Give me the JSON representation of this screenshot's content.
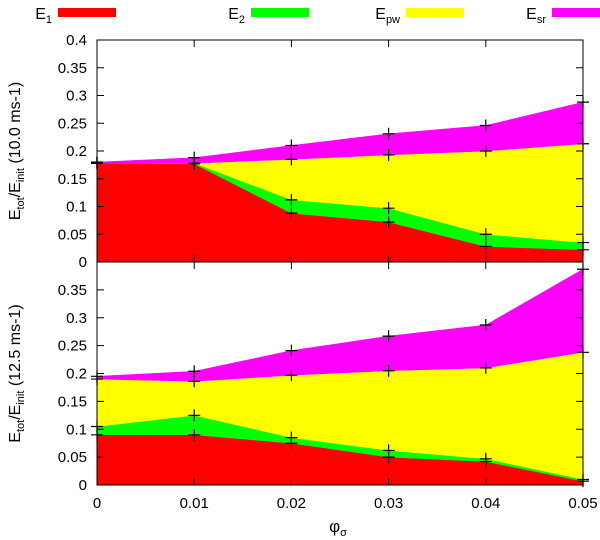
{
  "chart_data": {
    "type": "area",
    "stacked": true,
    "legend_position": "top",
    "legend": [
      {
        "key": "E1",
        "base": "E",
        "sub": "1",
        "color": "#ff0000"
      },
      {
        "key": "E2",
        "base": "E",
        "sub": "2",
        "color": "#00ff00"
      },
      {
        "key": "Epw",
        "base": "E",
        "sub": "pw",
        "color": "#ffff00"
      },
      {
        "key": "Esr",
        "base": "E",
        "sub": "sr",
        "color": "#ff00ff"
      }
    ],
    "x": [
      0,
      0.01,
      0.02,
      0.03,
      0.04,
      0.05
    ],
    "x_tick_labels": [
      "0",
      "0.01",
      "0.02",
      "0.03",
      "0.04",
      "0.05"
    ],
    "xlabel": {
      "base": "φ",
      "sub": "σ"
    },
    "xlim": [
      0,
      0.05
    ],
    "panels": [
      {
        "id": "top",
        "ylabel": {
          "pre": "E",
          "sub1": "tot",
          "mid": "/E",
          "sub2": "init",
          "post": " (10.0 ms-1)"
        },
        "ylim": [
          0,
          0.4
        ],
        "y_ticks": [
          0,
          0.05,
          0.1,
          0.15,
          0.2,
          0.25,
          0.3,
          0.35,
          0.4
        ],
        "y_tick_labels": [
          "0",
          "0.05",
          "0.1",
          "0.15",
          "0.2",
          "0.25",
          "0.3",
          "0.35",
          "0.4"
        ],
        "cumulative": {
          "E1": [
            0.178,
            0.177,
            0.088,
            0.072,
            0.028,
            0.022
          ],
          "E2": [
            0.178,
            0.178,
            0.112,
            0.097,
            0.05,
            0.035
          ],
          "Epw": [
            0.178,
            0.178,
            0.185,
            0.193,
            0.2,
            0.213
          ],
          "Esr": [
            0.18,
            0.188,
            0.21,
            0.231,
            0.246,
            0.288
          ]
        }
      },
      {
        "id": "bottom",
        "ylabel": {
          "pre": "E",
          "sub1": "tot",
          "mid": "/E",
          "sub2": "init",
          "post": " (12.5 ms-1)"
        },
        "ylim": [
          0,
          0.4
        ],
        "y_ticks": [
          0,
          0.05,
          0.1,
          0.15,
          0.2,
          0.25,
          0.3,
          0.35
        ],
        "y_tick_labels": [
          "0",
          "0.05",
          "0.1",
          "0.15",
          "0.2",
          "0.25",
          "0.3",
          "0.35"
        ],
        "cumulative": {
          "E1": [
            0.09,
            0.09,
            0.075,
            0.05,
            0.042,
            0.007
          ],
          "E2": [
            0.105,
            0.125,
            0.085,
            0.062,
            0.047,
            0.01
          ],
          "Epw": [
            0.19,
            0.186,
            0.197,
            0.205,
            0.21,
            0.238
          ],
          "Esr": [
            0.195,
            0.204,
            0.241,
            0.267,
            0.287,
            0.387
          ]
        }
      }
    ]
  }
}
